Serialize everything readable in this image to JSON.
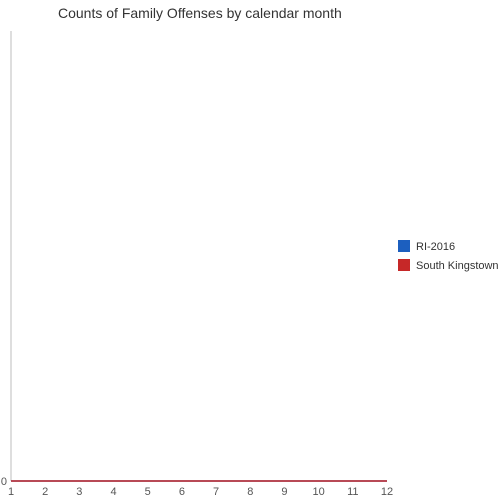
{
  "chart_data": {
    "type": "line",
    "title": "Counts of Family Offenses by calendar month",
    "xlabel": "",
    "ylabel": "",
    "x": [
      1,
      2,
      3,
      4,
      5,
      6,
      7,
      8,
      9,
      10,
      11,
      12
    ],
    "x_tick_labels": [
      "1",
      "2",
      "3",
      "4",
      "5",
      "6",
      "7",
      "8",
      "9",
      "10",
      "11",
      "12"
    ],
    "y_tick_labels": [
      "0"
    ],
    "xlim": [
      1,
      12
    ],
    "ylim": [
      0,
      1
    ],
    "grid": false,
    "legend_position": "right",
    "series": [
      {
        "name": "RI-2016",
        "color": "#1c5fbf",
        "values": [
          0,
          0,
          0,
          0,
          0,
          0,
          0,
          0,
          0,
          0,
          0,
          0
        ]
      },
      {
        "name": "South Kingstown",
        "color": "#c62828",
        "values": [
          0,
          0,
          0,
          0,
          0,
          0,
          0,
          0,
          0,
          0,
          0,
          0
        ]
      }
    ]
  },
  "colors": {
    "axis": "#bdbdbd",
    "text": "#333333",
    "tick_text": "#555555"
  }
}
